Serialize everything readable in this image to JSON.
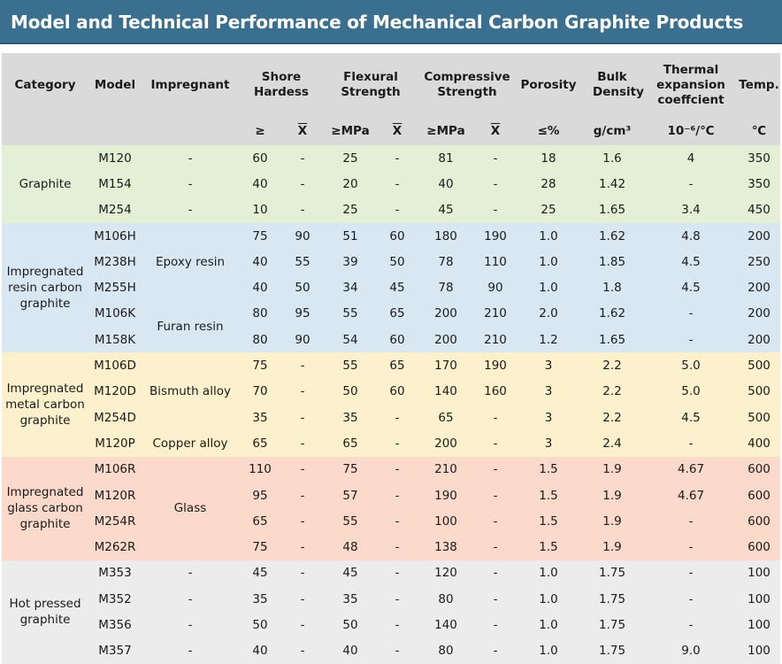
{
  "title": "Model and Technical Performance of Mechanical Carbon Graphite Products",
  "headers": {
    "category": "Category",
    "model": "Model",
    "impregnant": "Impregnant",
    "shore": "Shore Hardess",
    "flexural": "Flexural Strength",
    "compressive": "Compressive Strength",
    "porosity": "Porosity",
    "bulk": "Bulk Density",
    "thermal": "Thermal expansion coeffcient",
    "temp": "Temp."
  },
  "subheaders": {
    "shore_min": "≥",
    "shore_avg": "X",
    "flex_min": "≥MPa",
    "flex_avg": "X",
    "comp_min": "≥MPa",
    "comp_avg": "X",
    "porosity": "≤%",
    "bulk": "g/cm³",
    "thermal": "10⁻⁶/℃",
    "temp": "℃"
  },
  "groups": [
    {
      "category": "Graphite",
      "impregnants": [
        {
          "label": "-",
          "span": 1
        },
        {
          "label": "-",
          "span": 1
        },
        {
          "label": "-",
          "span": 1
        }
      ],
      "rows": [
        [
          "M120",
          "60",
          "-",
          "25",
          "-",
          "81",
          "-",
          "18",
          "1.6",
          "4",
          "350"
        ],
        [
          "M154",
          "40",
          "-",
          "20",
          "-",
          "40",
          "-",
          "28",
          "1.42",
          "-",
          "350"
        ],
        [
          "M254",
          "10",
          "-",
          "25",
          "-",
          "45",
          "-",
          "25",
          "1.65",
          "3.4",
          "450"
        ]
      ]
    },
    {
      "category": "Impregnated resin carbon graphite",
      "impregnants": [
        {
          "label": "Epoxy resin",
          "span": 3
        },
        {
          "label": "Furan resin",
          "span": 2
        }
      ],
      "rows": [
        [
          "M106H",
          "75",
          "90",
          "51",
          "60",
          "180",
          "190",
          "1.0",
          "1.62",
          "4.8",
          "200"
        ],
        [
          "M238H",
          "40",
          "55",
          "39",
          "50",
          "78",
          "110",
          "1.0",
          "1.85",
          "4.5",
          "250"
        ],
        [
          "M255H",
          "40",
          "50",
          "34",
          "45",
          "78",
          "90",
          "1.0",
          "1.8",
          "4.5",
          "200"
        ],
        [
          "M106K",
          "80",
          "95",
          "55",
          "65",
          "200",
          "210",
          "2.0",
          "1.62",
          "-",
          "200"
        ],
        [
          "M158K",
          "80",
          "90",
          "54",
          "60",
          "200",
          "210",
          "1.2",
          "1.65",
          "-",
          "200"
        ]
      ]
    },
    {
      "category": "Impregnated metal carbon graphite",
      "impregnants": [
        {
          "label": "Bismuth alloy",
          "span": 3
        },
        {
          "label": "Copper alloy",
          "span": 1
        }
      ],
      "rows": [
        [
          "M106D",
          "75",
          "-",
          "55",
          "65",
          "170",
          "190",
          "3",
          "2.2",
          "5.0",
          "500"
        ],
        [
          "M120D",
          "70",
          "-",
          "50",
          "60",
          "140",
          "160",
          "3",
          "2.2",
          "5.0",
          "500"
        ],
        [
          "M254D",
          "35",
          "-",
          "35",
          "-",
          "65",
          "-",
          "3",
          "2.2",
          "4.5",
          "500"
        ],
        [
          "M120P",
          "65",
          "-",
          "65",
          "-",
          "200",
          "-",
          "3",
          "2.4",
          "-",
          "400"
        ]
      ]
    },
    {
      "category": "Impregnated glass carbon graphite",
      "impregnants": [
        {
          "label": "Glass",
          "span": 4
        }
      ],
      "rows": [
        [
          "M106R",
          "110",
          "-",
          "75",
          "-",
          "210",
          "-",
          "1.5",
          "1.9",
          "4.67",
          "600"
        ],
        [
          "M120R",
          "95",
          "-",
          "57",
          "-",
          "190",
          "-",
          "1.5",
          "1.9",
          "4.67",
          "600"
        ],
        [
          "M254R",
          "65",
          "-",
          "55",
          "-",
          "100",
          "-",
          "1.5",
          "1.9",
          "-",
          "600"
        ],
        [
          "M262R",
          "75",
          "-",
          "48",
          "-",
          "138",
          "-",
          "1.5",
          "1.9",
          "-",
          "600"
        ]
      ]
    },
    {
      "category": "Hot pressed graphite",
      "impregnants": [
        {
          "label": "-",
          "span": 1
        },
        {
          "label": "-",
          "span": 1
        },
        {
          "label": "-",
          "span": 1
        },
        {
          "label": "-",
          "span": 1
        }
      ],
      "rows": [
        [
          "M353",
          "45",
          "-",
          "45",
          "-",
          "120",
          "-",
          "1.0",
          "1.75",
          "-",
          "100"
        ],
        [
          "M352",
          "35",
          "-",
          "35",
          "-",
          "80",
          "-",
          "1.0",
          "1.75",
          "-",
          "100"
        ],
        [
          "M356",
          "50",
          "-",
          "50",
          "-",
          "140",
          "-",
          "1.0",
          "1.75",
          "-",
          "100"
        ],
        [
          "M357",
          "40",
          "-",
          "40",
          "-",
          "80",
          "-",
          "1.0",
          "1.75",
          "9.0",
          "100"
        ]
      ]
    }
  ]
}
